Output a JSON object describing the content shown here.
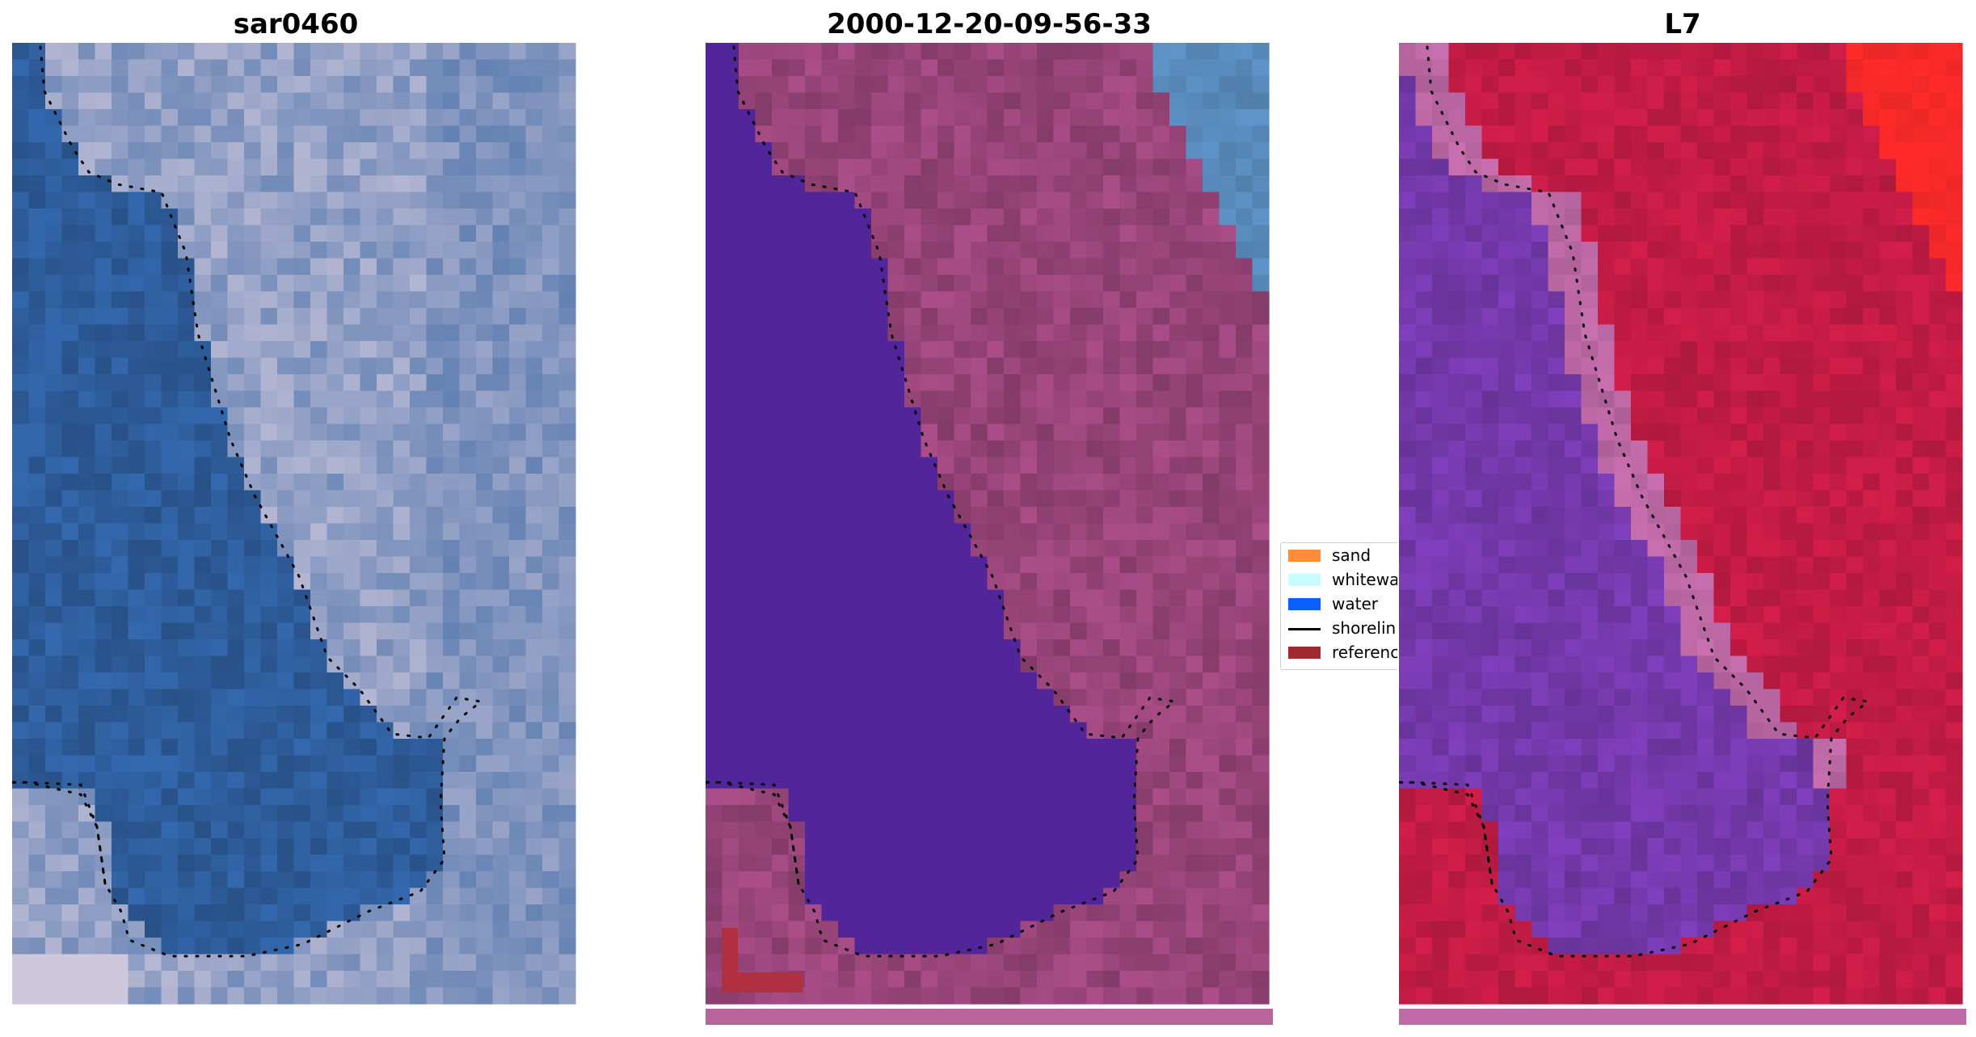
{
  "titles": {
    "left": "sar0460",
    "middle": "2000-12-20-09-56-33",
    "right": "L7"
  },
  "legend": {
    "items": [
      {
        "label": "sand",
        "color": "#ff8c3a",
        "kind": "patch"
      },
      {
        "label": "whitewa",
        "color": "#c8fbff",
        "kind": "patch"
      },
      {
        "label": "water",
        "color": "#0a5eff",
        "kind": "patch"
      },
      {
        "label": "shorelin",
        "color": "#000000",
        "kind": "line"
      },
      {
        "label": "referenc",
        "color": "#a02830",
        "kind": "patch"
      }
    ]
  },
  "colors": {
    "rgb_water": "#2f5f9f",
    "rgb_land": "#b4b6d2",
    "class_water": "#52259a",
    "class_land": "#a04880",
    "class_reference": "#b03040",
    "class_whitewater_tint": "#5a8ec0",
    "ndwi_water": "#7a3cb4",
    "ndwi_land": "#c81c46",
    "ndwi_edge": "#c06aa8",
    "ndwi_hot": "#ff2a2a",
    "shoreline": "#000000"
  }
}
